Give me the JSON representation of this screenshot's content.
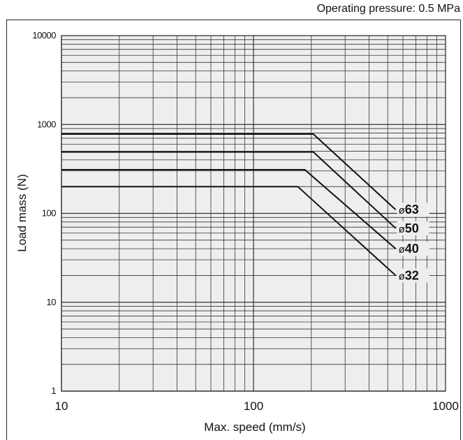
{
  "header": {
    "note": "Operating pressure: 0.5 MPa"
  },
  "chart_data": {
    "type": "line",
    "xlabel": "Max. speed (mm/s)",
    "ylabel": "Load mass (N)",
    "xscale": "log",
    "yscale": "log",
    "xlim": [
      10,
      1000
    ],
    "ylim": [
      1,
      10000
    ],
    "x_ticks": [
      "10",
      "100",
      "1000"
    ],
    "y_ticks": [
      "1",
      "10",
      "100",
      "1000",
      "10000"
    ],
    "grid": true,
    "background": "#eeeeee",
    "series": [
      {
        "name": "ø63",
        "points": [
          [
            10,
            780
          ],
          [
            205,
            780
          ],
          [
            550,
            110
          ]
        ],
        "label_prefix": "ø",
        "label_number": "63"
      },
      {
        "name": "ø50",
        "points": [
          [
            10,
            490
          ],
          [
            205,
            490
          ],
          [
            550,
            68
          ]
        ],
        "label_prefix": "ø",
        "label_number": "50"
      },
      {
        "name": "ø40",
        "points": [
          [
            10,
            310
          ],
          [
            185,
            310
          ],
          [
            550,
            40
          ]
        ],
        "label_prefix": "ø",
        "label_number": "40"
      },
      {
        "name": "ø32",
        "points": [
          [
            10,
            200
          ],
          [
            170,
            200
          ],
          [
            550,
            20
          ]
        ],
        "label_prefix": "ø",
        "label_number": "32"
      }
    ]
  }
}
